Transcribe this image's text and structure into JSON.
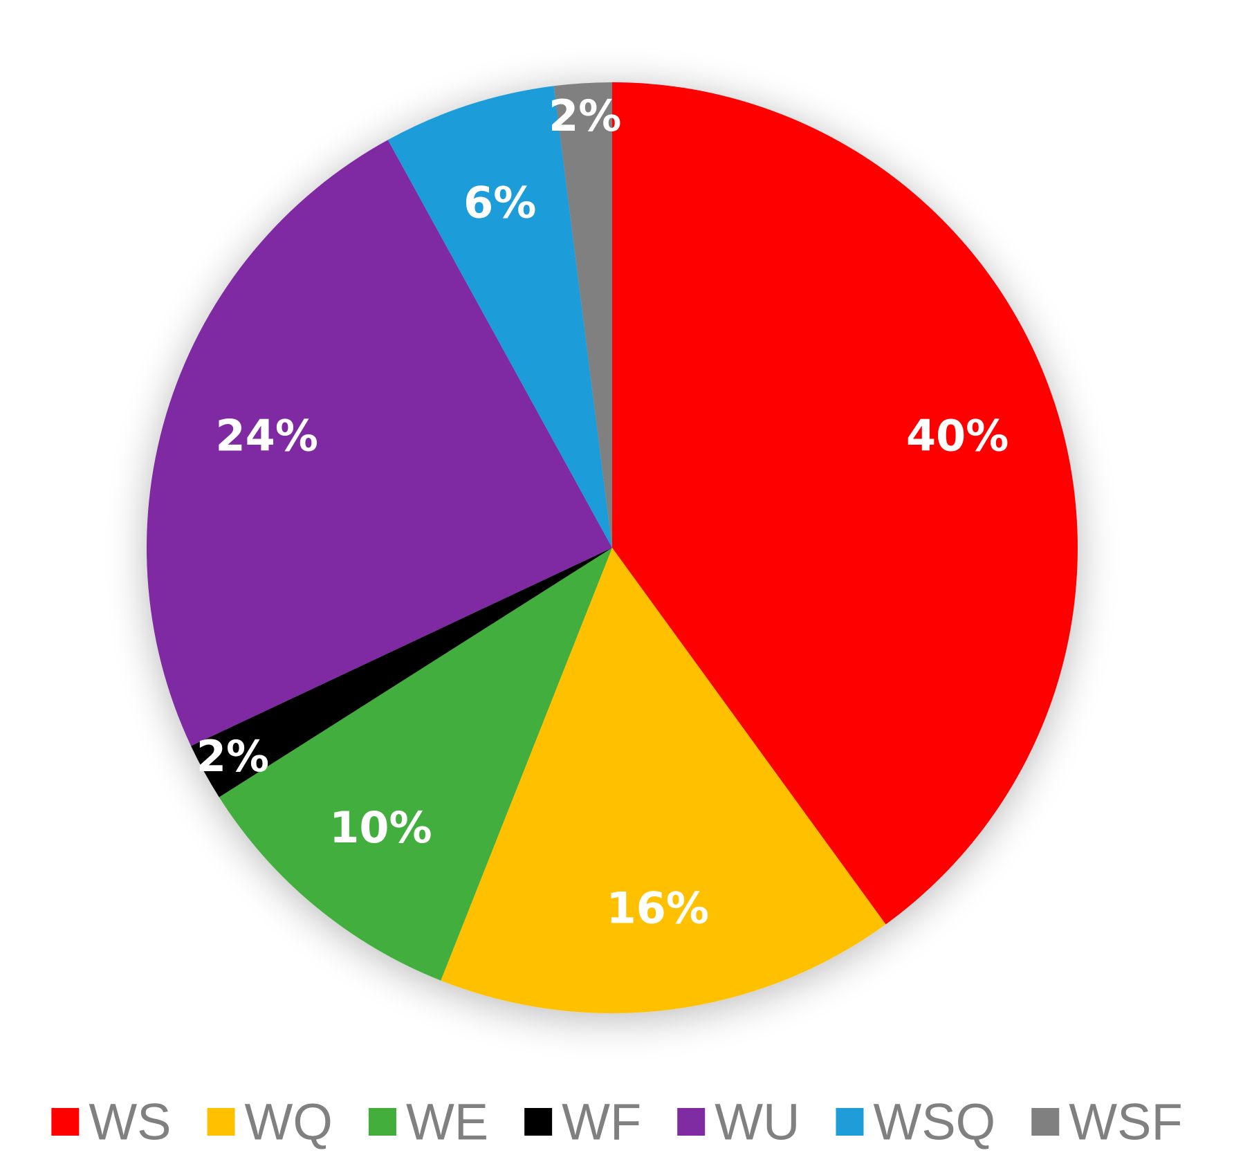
{
  "chart_data": {
    "type": "pie",
    "categories": [
      "WS",
      "WQ",
      "WE",
      "WF",
      "WU",
      "WSQ",
      "WSF"
    ],
    "values": [
      40,
      16,
      10,
      2,
      24,
      6,
      2
    ],
    "data_labels": [
      "40%",
      "16%",
      "10%",
      "2%",
      "24%",
      "6%",
      "2%"
    ],
    "colors": [
      "#FF0000",
      "#FFC000",
      "#43AE3C",
      "#000000",
      "#7F2CA2",
      "#1E9DD9",
      "#808080"
    ],
    "start_angle_deg": 0,
    "direction": "clockwise",
    "legend": {
      "position": "bottom",
      "items": [
        "WS",
        "WQ",
        "WE",
        "WF",
        "WU",
        "WSQ",
        "WSF"
      ]
    },
    "title": ""
  }
}
